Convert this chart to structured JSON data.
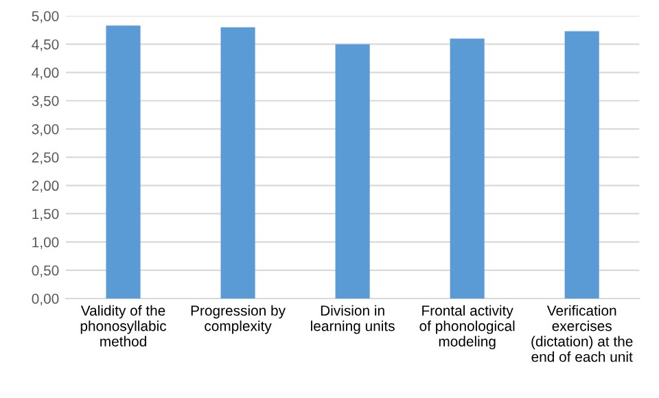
{
  "chart_data": {
    "type": "bar",
    "categories": [
      "Validity of the\nphonosyllabic\nmethod",
      "Progression by\ncomplexity",
      "Division in\nlearning units",
      "Frontal activity\nof phonological\nmodeling",
      "Verification\nexercises\n(dictation) at the\nend of each unit"
    ],
    "values": [
      4.83,
      4.8,
      4.5,
      4.6,
      4.73
    ],
    "color": "#5b9bd5",
    "ylim": [
      0,
      5
    ],
    "yticks": [
      {
        "value": 0,
        "label": "0,00"
      },
      {
        "value": 0.5,
        "label": "0,50"
      },
      {
        "value": 1,
        "label": "1,00"
      },
      {
        "value": 1.5,
        "label": "1,50"
      },
      {
        "value": 2,
        "label": "2,00"
      },
      {
        "value": 2.5,
        "label": "2,50"
      },
      {
        "value": 3,
        "label": "3,00"
      },
      {
        "value": 3.5,
        "label": "3,50"
      },
      {
        "value": 4,
        "label": "4,00"
      },
      {
        "value": 4.5,
        "label": "4,50"
      },
      {
        "value": 5,
        "label": "5,00"
      }
    ],
    "grid": "y"
  }
}
